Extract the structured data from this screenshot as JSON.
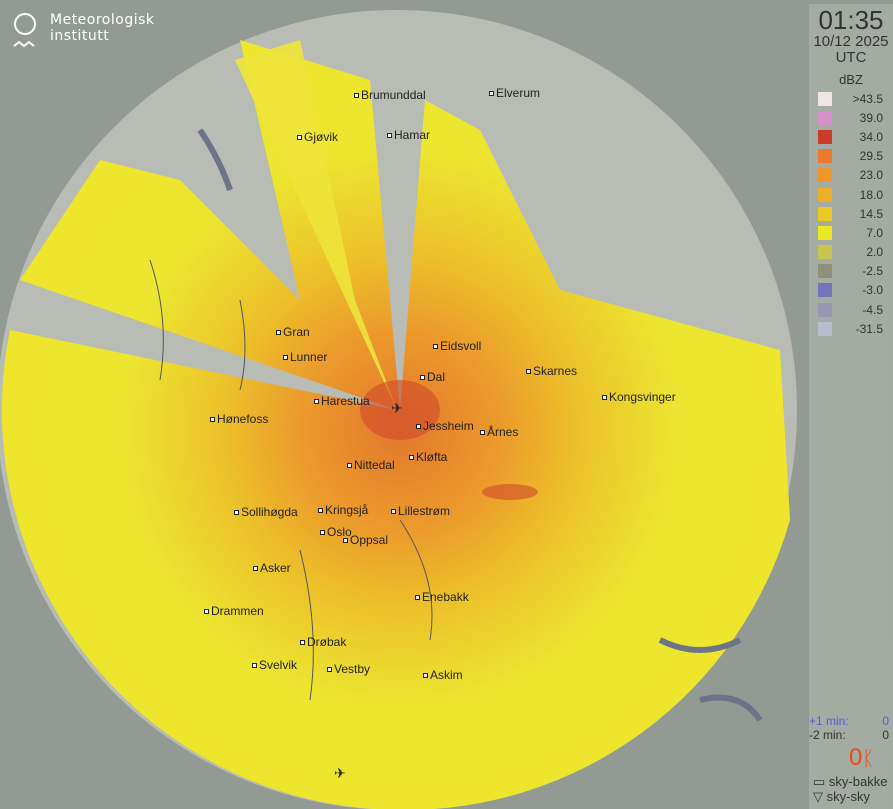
{
  "logo": {
    "line1": "Meteorologisk",
    "line2": "institutt"
  },
  "timestamp": {
    "time": "01:35",
    "date": "10/12 2025",
    "zone": "UTC"
  },
  "legend": {
    "unit": "dBZ",
    "items": [
      {
        "label": ">43.5",
        "color": "#f0e4e6"
      },
      {
        "label": "39.0",
        "color": "#d890c8"
      },
      {
        "label": "34.0",
        "color": "#cc3a2a"
      },
      {
        "label": "29.5",
        "color": "#ea7a2c"
      },
      {
        "label": "23.0",
        "color": "#ee962a"
      },
      {
        "label": "18.0",
        "color": "#ecae28"
      },
      {
        "label": "14.5",
        "color": "#ecc824"
      },
      {
        "label": "7.0",
        "color": "#ece826"
      },
      {
        "label": "2.0",
        "color": "#c8c450"
      },
      {
        "label": "-2.5",
        "color": "#8e907a"
      },
      {
        "label": "-3.0",
        "color": "#7474b8"
      },
      {
        "label": "-4.5",
        "color": "#9898b4"
      },
      {
        "label": "-31.5",
        "color": "#b8bccc"
      }
    ]
  },
  "lightning": {
    "plus1_label": "+1 min:",
    "plus1_value": "0",
    "minus2_label": "-2 min:",
    "minus2_value": "0",
    "count": "0",
    "ground_label": "sky-bakke",
    "cloud_label": "sky-sky",
    "accent": "#f04a10"
  },
  "cities": [
    "Brumunddal",
    "Elverum",
    "Gjøvik",
    "Hamar",
    "Gran",
    "Lunner",
    "Eidsvoll",
    "Dal",
    "Skarnes",
    "Kongsvinger",
    "Harestua",
    "Hønefoss",
    "Jessheim",
    "Årnes",
    "Nittedal",
    "Kløfta",
    "Sollihøgda",
    "Kringsjå",
    "Lillestrøm",
    "Oslo",
    "Oppsal",
    "Asker",
    "Enebakk",
    "Drammen",
    "Drøbak",
    "Svelvik",
    "Vestby",
    "Askim"
  ]
}
